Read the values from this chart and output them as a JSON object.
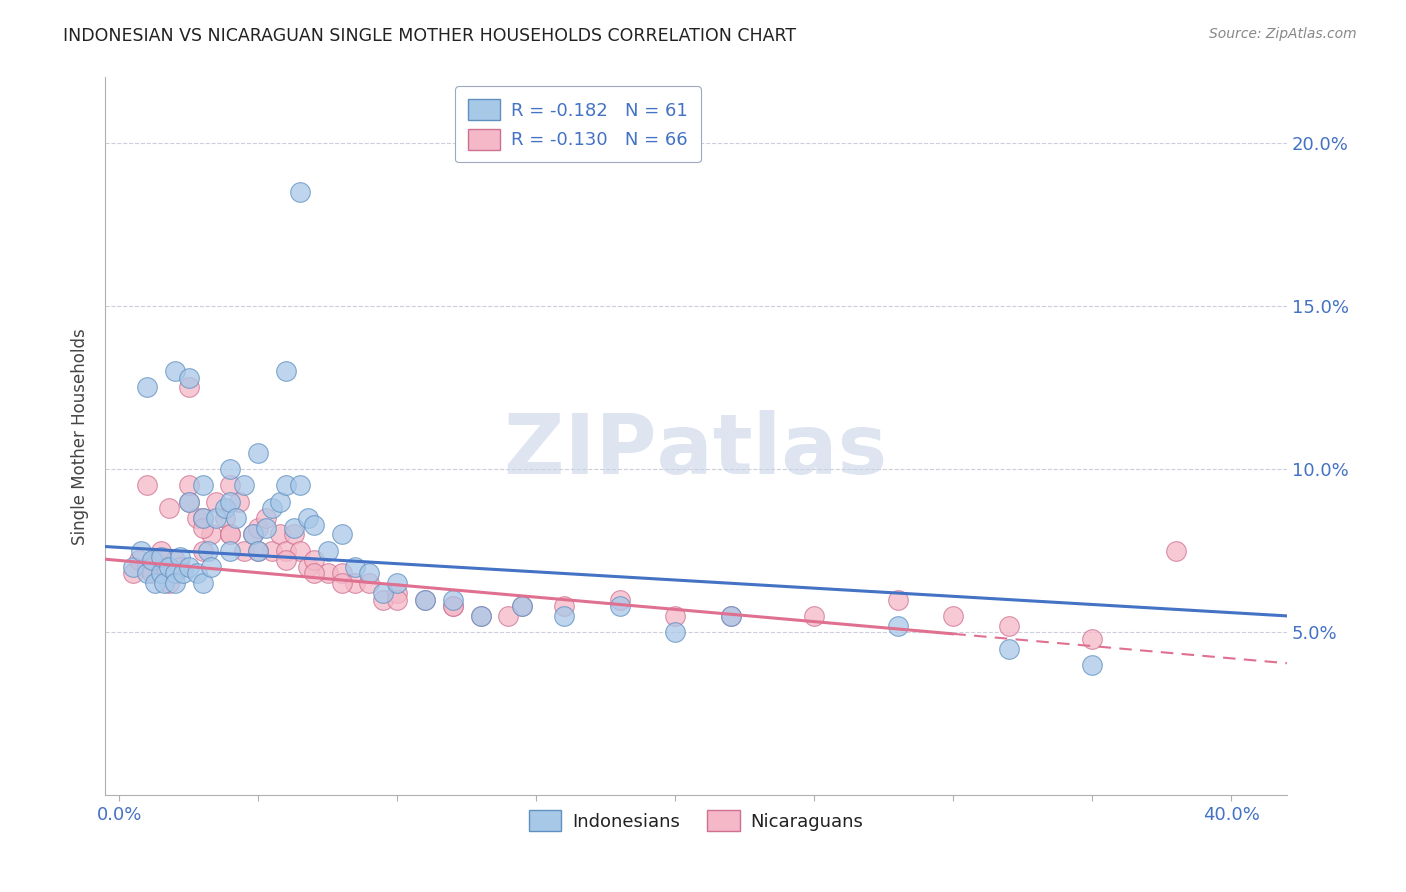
{
  "title": "INDONESIAN VS NICARAGUAN SINGLE MOTHER HOUSEHOLDS CORRELATION CHART",
  "source": "Source: ZipAtlas.com",
  "ylabel": "Single Mother Households",
  "ylim": [
    0.0,
    0.22
  ],
  "xlim": [
    -0.005,
    0.42
  ],
  "yticks": [
    0.05,
    0.1,
    0.15,
    0.2
  ],
  "ytick_labels": [
    "5.0%",
    "10.0%",
    "15.0%",
    "20.0%"
  ],
  "legend_r1": "R = -0.182",
  "legend_n1": "N = 61",
  "legend_r2": "R = -0.130",
  "legend_n2": "N = 66",
  "blue_fill": "#A8C8E8",
  "blue_edge": "#6090C0",
  "pink_fill": "#F4B8C8",
  "pink_edge": "#D07090",
  "blue_line_color": "#4472C4",
  "pink_line_color": "#E07090",
  "grid_color": "#C8C8D8",
  "watermark_color": "#C8D4E8",
  "indo_x": [
    0.005,
    0.008,
    0.01,
    0.012,
    0.013,
    0.015,
    0.015,
    0.016,
    0.018,
    0.02,
    0.02,
    0.022,
    0.023,
    0.025,
    0.025,
    0.028,
    0.03,
    0.03,
    0.032,
    0.033,
    0.035,
    0.038,
    0.04,
    0.04,
    0.042,
    0.045,
    0.048,
    0.05,
    0.053,
    0.055,
    0.058,
    0.06,
    0.063,
    0.065,
    0.068,
    0.07,
    0.075,
    0.08,
    0.085,
    0.09,
    0.095,
    0.1,
    0.11,
    0.12,
    0.13,
    0.145,
    0.16,
    0.18,
    0.2,
    0.22,
    0.065,
    0.01,
    0.02,
    0.025,
    0.03,
    0.04,
    0.05,
    0.06,
    0.28,
    0.32,
    0.35
  ],
  "indo_y": [
    0.07,
    0.075,
    0.068,
    0.072,
    0.065,
    0.068,
    0.073,
    0.065,
    0.07,
    0.068,
    0.065,
    0.073,
    0.068,
    0.09,
    0.07,
    0.068,
    0.085,
    0.065,
    0.075,
    0.07,
    0.085,
    0.088,
    0.09,
    0.075,
    0.085,
    0.095,
    0.08,
    0.075,
    0.082,
    0.088,
    0.09,
    0.095,
    0.082,
    0.095,
    0.085,
    0.083,
    0.075,
    0.08,
    0.07,
    0.068,
    0.062,
    0.065,
    0.06,
    0.06,
    0.055,
    0.058,
    0.055,
    0.058,
    0.05,
    0.055,
    0.185,
    0.125,
    0.13,
    0.128,
    0.095,
    0.1,
    0.105,
    0.13,
    0.052,
    0.045,
    0.04
  ],
  "nica_x": [
    0.005,
    0.007,
    0.01,
    0.012,
    0.013,
    0.015,
    0.015,
    0.017,
    0.018,
    0.02,
    0.02,
    0.022,
    0.025,
    0.025,
    0.028,
    0.03,
    0.03,
    0.033,
    0.035,
    0.038,
    0.04,
    0.04,
    0.043,
    0.045,
    0.048,
    0.05,
    0.053,
    0.055,
    0.058,
    0.06,
    0.063,
    0.065,
    0.068,
    0.07,
    0.075,
    0.08,
    0.085,
    0.09,
    0.095,
    0.1,
    0.11,
    0.12,
    0.13,
    0.145,
    0.16,
    0.18,
    0.2,
    0.22,
    0.25,
    0.28,
    0.3,
    0.32,
    0.35,
    0.38,
    0.01,
    0.018,
    0.025,
    0.03,
    0.04,
    0.05,
    0.06,
    0.07,
    0.08,
    0.1,
    0.12,
    0.14
  ],
  "nica_y": [
    0.068,
    0.072,
    0.07,
    0.068,
    0.072,
    0.075,
    0.068,
    0.07,
    0.065,
    0.072,
    0.068,
    0.07,
    0.125,
    0.09,
    0.085,
    0.085,
    0.075,
    0.08,
    0.09,
    0.085,
    0.095,
    0.08,
    0.09,
    0.075,
    0.08,
    0.082,
    0.085,
    0.075,
    0.08,
    0.075,
    0.08,
    0.075,
    0.07,
    0.072,
    0.068,
    0.068,
    0.065,
    0.065,
    0.06,
    0.062,
    0.06,
    0.058,
    0.055,
    0.058,
    0.058,
    0.06,
    0.055,
    0.055,
    0.055,
    0.06,
    0.055,
    0.052,
    0.048,
    0.075,
    0.095,
    0.088,
    0.095,
    0.082,
    0.08,
    0.075,
    0.072,
    0.068,
    0.065,
    0.06,
    0.058,
    0.055
  ]
}
